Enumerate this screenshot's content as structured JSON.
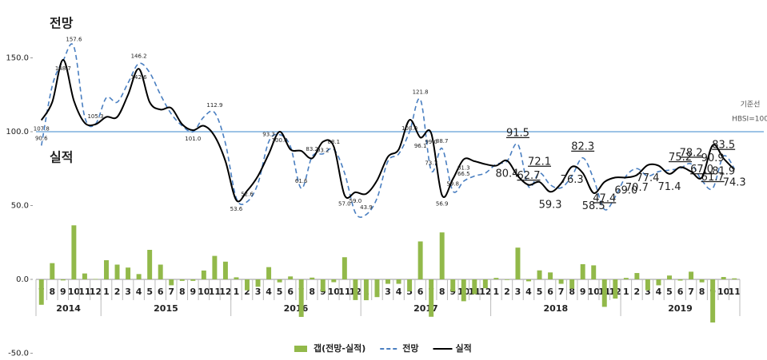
{
  "chart_data": {
    "type": "combo",
    "annotations": [
      "전망",
      "실적"
    ],
    "reference_line": {
      "value": 100,
      "label": [
        "기준선",
        "HBSI=100"
      ],
      "color": "#9dc3e6"
    },
    "categories": [
      "7",
      "8",
      "9",
      "10",
      "11",
      "12",
      "1",
      "2",
      "3",
      "4",
      "5",
      "6",
      "7",
      "8",
      "9",
      "10",
      "11",
      "12",
      "1",
      "2",
      "3",
      "4",
      "5",
      "6",
      "7",
      "8",
      "9",
      "10",
      "11",
      "12",
      "1",
      "2",
      "3",
      "4",
      "5",
      "6",
      "7",
      "8",
      "9",
      "10",
      "11",
      "12",
      "1",
      "2",
      "3",
      "4",
      "5",
      "6",
      "7",
      "8",
      "9",
      "10",
      "11",
      "12",
      "1",
      "2",
      "3",
      "4",
      "5",
      "6",
      "7",
      "8",
      "9",
      "10",
      "11"
    ],
    "years": [
      "2014",
      "2015",
      "2016",
      "2017",
      "2018",
      "2019"
    ],
    "ylim": [
      -50,
      180
    ],
    "yticks": [
      {
        "value": -50,
        "label": "-50.0"
      },
      {
        "value": 0,
        "label": "0.0"
      },
      {
        "value": 50,
        "label": "50.0"
      },
      {
        "value": 100,
        "label": "100.0"
      },
      {
        "value": 150,
        "label": "150.0"
      }
    ],
    "series": [
      {
        "name": "갭(전망-실적)",
        "kind": "bar",
        "color": "#92b94a",
        "values": [
          -17.2,
          11,
          -0.7,
          36.6,
          4,
          0.3,
          13,
          10,
          8,
          3.6,
          20,
          10,
          -4,
          -1,
          -1,
          6,
          15.9,
          12,
          1.4,
          -7.4,
          -5,
          8.3,
          -2,
          2,
          -25.4,
          1.2,
          -8.2,
          -1.9,
          15,
          -14,
          -14.1,
          -12,
          -3,
          -3,
          -8,
          25.7,
          -25.3,
          31.8,
          -8.2,
          -14.8,
          -10,
          -6,
          1,
          -0.4,
          21.5,
          -1.3,
          6.1,
          4.7,
          -3,
          -6.3,
          10.3,
          9.5,
          -18.6,
          -13,
          1,
          4.3,
          -7.4,
          -4,
          2.6,
          -0.8,
          5.2,
          -2,
          -29.2,
          1.6,
          0.7
        ]
      },
      {
        "name": "전망",
        "kind": "line",
        "line_style": "dashed",
        "color": "#4a7fc1",
        "values": [
          90.6,
          131,
          148,
          157.6,
          110,
          105.3,
          123,
          120,
          133,
          146.2,
          140,
          125,
          112,
          104,
          100,
          110,
          112.9,
          92,
          55,
          52.6,
          65,
          93.3,
          98,
          90,
          61.6,
          83.2,
          85,
          88.1,
          72,
          45,
          43.9,
          55,
          80,
          85,
          100,
          121.8,
          73.7,
          88.7,
          59.8,
          66.5,
          70,
          72,
          78,
          80,
          91.5,
          62.7,
          72.1,
          64,
          62,
          70,
          82.3,
          68,
          47.4,
          56,
          70,
          75,
          70,
          73,
          74,
          75.2,
          78.2,
          67.0,
          61.7,
          83.5,
          75
        ],
        "value_labels": [
          "90.6",
          null,
          null,
          "157.6",
          null,
          "105.3",
          null,
          null,
          null,
          "146.2",
          null,
          null,
          null,
          null,
          null,
          null,
          "112.9",
          null,
          null,
          "52.6",
          null,
          "93.3",
          null,
          null,
          "61.6",
          "83.2",
          null,
          "88.1",
          null,
          null,
          "43.9",
          null,
          null,
          null,
          null,
          "121.8",
          "73.7",
          "88.7",
          "59.8",
          "66.5",
          null,
          null,
          null,
          null,
          "91.5",
          "62.7",
          "72.1",
          null,
          null,
          null,
          "82.3",
          null,
          "47.4",
          null,
          null,
          null,
          null,
          null,
          null,
          "75.2",
          "78.2",
          "67.0",
          "61.7",
          "83.5",
          null
        ]
      },
      {
        "name": "실적",
        "kind": "line",
        "line_style": "solid",
        "color": "#000000",
        "values": [
          107.8,
          120,
          148.7,
          121,
          106,
          105,
          110,
          110,
          125,
          142.6,
          120,
          115,
          116,
          105,
          101.0,
          104,
          97,
          80,
          53.6,
          60,
          70,
          85,
          100.0,
          88,
          87,
          82,
          93.2,
          90,
          57.0,
          59.0,
          58,
          67,
          83,
          88,
          108.0,
          96.1,
          99.0,
          56.9,
          68,
          81.3,
          80,
          78,
          77,
          80.4,
          70,
          64,
          66,
          59.3,
          65,
          76.3,
          72,
          58.5,
          66,
          69,
          69.0,
          70.7,
          77.4,
          77,
          71.4,
          76,
          73,
          69,
          90.9,
          81.9,
          74.3
        ],
        "value_labels": [
          "107.8",
          null,
          "148.7",
          null,
          null,
          null,
          null,
          null,
          null,
          "142.6",
          null,
          null,
          null,
          null,
          "101.0",
          null,
          null,
          null,
          "53.6",
          null,
          null,
          null,
          "100.0",
          null,
          null,
          null,
          "93.2",
          null,
          "57.0",
          "59.0",
          null,
          null,
          null,
          null,
          "108.0",
          "96.1",
          "99.0",
          "56.9",
          null,
          "81.3",
          null,
          null,
          null,
          "80.4",
          null,
          null,
          null,
          "59.3",
          null,
          "76.3",
          null,
          "58.5",
          null,
          null,
          "69.0",
          "70.7",
          "77.4",
          null,
          "71.4",
          null,
          null,
          null,
          "90.9",
          "81.9",
          "74.3"
        ]
      }
    ]
  }
}
